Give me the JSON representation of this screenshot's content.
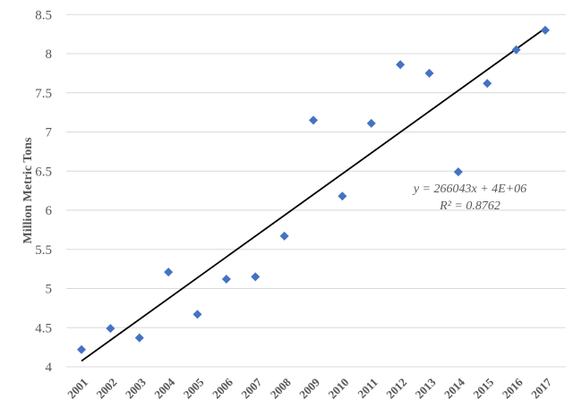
{
  "chart_data": {
    "type": "scatter",
    "title": "",
    "xlabel": "",
    "ylabel": "Million Metric Tons",
    "ylim": [
      4,
      8.5
    ],
    "y_ticks": [
      "4",
      "4.5",
      "5",
      "5.5",
      "6",
      "6.5",
      "7",
      "7.5",
      "8",
      "8.5"
    ],
    "categories": [
      "2001",
      "2002",
      "2003",
      "2004",
      "2005",
      "2006",
      "2007",
      "2008",
      "2009",
      "2010",
      "2011",
      "2012",
      "2013",
      "2014",
      "2015",
      "2016",
      "2017"
    ],
    "values": [
      4.22,
      4.49,
      4.37,
      5.21,
      4.67,
      5.12,
      5.15,
      5.67,
      7.15,
      6.18,
      7.11,
      7.86,
      7.75,
      6.49,
      7.62,
      8.05,
      8.3
    ],
    "grid": true,
    "marker": "diamond",
    "marker_color": "#4472C4",
    "trendline": {
      "type": "linear",
      "color": "#000000",
      "equation": "y = 266043x + 4E+06",
      "r_squared": "R² = 0.8762"
    }
  }
}
